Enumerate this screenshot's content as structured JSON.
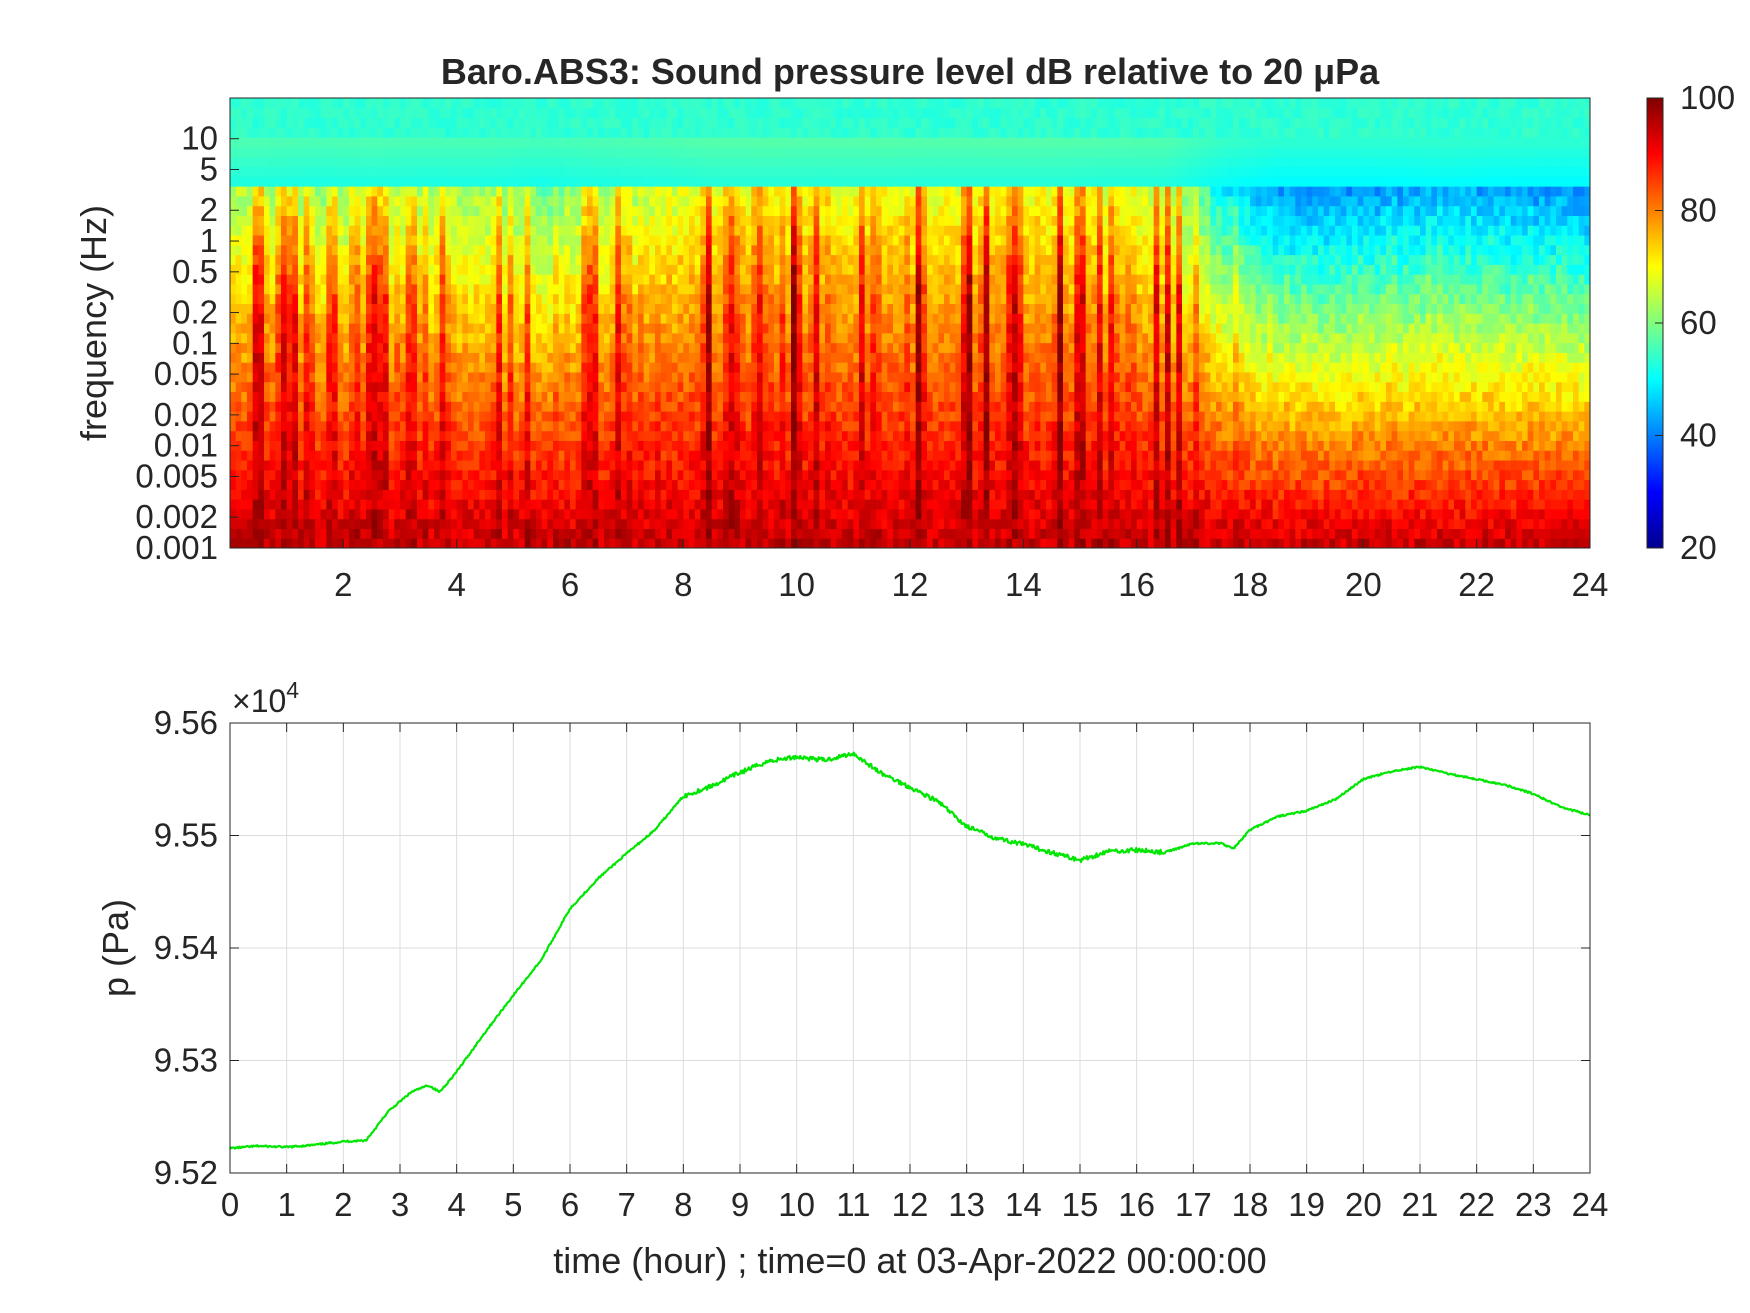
{
  "figure": {
    "window_title": "",
    "colors": {
      "pressure_line": "#00e600",
      "axes": "#262626",
      "grid": "#dcdcdc",
      "background": "#ffffff"
    }
  },
  "chart_data": [
    {
      "type": "heatmap",
      "title": "Baro.ABS3: Sound pressure level dB relative to 20 μPa",
      "xlabel": "",
      "ylabel": "frequency (Hz)",
      "x_ticks": [
        2,
        4,
        6,
        8,
        10,
        12,
        14,
        16,
        18,
        20,
        22,
        24
      ],
      "x_tick_labels": [
        "2",
        "4",
        "6",
        "8",
        "10",
        "12",
        "14",
        "16",
        "18",
        "20",
        "22",
        "24"
      ],
      "xlim": [
        0,
        24
      ],
      "y_scale": "log",
      "y_ticks": [
        0.001,
        0.002,
        0.005,
        0.01,
        0.02,
        0.05,
        0.1,
        0.2,
        0.5,
        1,
        2,
        5,
        10
      ],
      "y_tick_labels": [
        "0.001",
        "0.002",
        "0.005",
        "0.01",
        "0.02",
        "0.05",
        "0.1",
        "0.2",
        "0.5",
        "1",
        "2",
        "5",
        "10"
      ],
      "ylim": [
        0.001,
        25
      ],
      "colormap": "jet",
      "colorbar": {
        "clim": [
          20,
          100
        ],
        "ticks": [
          20,
          40,
          60,
          80,
          100
        ],
        "tick_labels": [
          "20",
          "40",
          "60",
          "80",
          "100"
        ],
        "placement": "right"
      },
      "time_hours": [
        0.5,
        1.5,
        2.5,
        3.5,
        4.5,
        5.5,
        6.5,
        7.5,
        8.5,
        9.5,
        10.5,
        11.5,
        12.5,
        13.5,
        14.5,
        15.5,
        16.5,
        17.5,
        18.5,
        19.5,
        20.5,
        21.5,
        22.5,
        23.5
      ],
      "activity_level_approx": [
        0.75,
        0.7,
        0.75,
        0.7,
        0.72,
        0.6,
        0.72,
        0.78,
        0.9,
        0.92,
        0.9,
        0.92,
        0.88,
        0.9,
        0.9,
        0.85,
        0.82,
        0.35,
        0.12,
        0.12,
        0.14,
        0.2,
        0.14,
        0.12
      ],
      "grid": false
    },
    {
      "type": "line",
      "title": "",
      "xlabel": "time (hour) ; time=0 at 03-Apr-2022 00:00:00",
      "ylabel": "p (Pa)",
      "y_exponent_label": "×10",
      "y_exponent_power": "4",
      "xlim": [
        0,
        24
      ],
      "ylim": [
        95200,
        95600
      ],
      "x_ticks": [
        0,
        1,
        2,
        3,
        4,
        5,
        6,
        7,
        8,
        9,
        10,
        11,
        12,
        13,
        14,
        15,
        16,
        17,
        18,
        19,
        20,
        21,
        22,
        23,
        24
      ],
      "x_tick_labels": [
        "0",
        "1",
        "2",
        "3",
        "4",
        "5",
        "6",
        "7",
        "8",
        "9",
        "10",
        "11",
        "12",
        "13",
        "14",
        "15",
        "16",
        "17",
        "18",
        "19",
        "20",
        "21",
        "22",
        "23",
        "24"
      ],
      "y_ticks": [
        95200,
        95300,
        95400,
        95500,
        95600
      ],
      "y_tick_labels": [
        "9.52",
        "9.53",
        "9.54",
        "9.55",
        "9.56"
      ],
      "grid": true,
      "series": [
        {
          "color": "#00e600",
          "x": [
            0,
            0.5,
            1,
            1.5,
            2,
            2.4,
            2.8,
            3.2,
            3.5,
            3.7,
            4,
            4.5,
            5,
            5.5,
            6,
            6.5,
            7,
            7.5,
            8,
            8.5,
            9,
            9.5,
            10,
            10.5,
            11,
            11.5,
            12,
            12.5,
            13,
            13.5,
            14,
            14.5,
            15,
            15.5,
            16,
            16.5,
            17,
            17.5,
            17.7,
            18,
            18.5,
            19,
            19.5,
            20,
            20.5,
            21,
            21.5,
            22,
            22.5,
            23,
            23.5,
            24
          ],
          "y": [
            95222,
            95224,
            95223,
            95225,
            95228,
            95229,
            95255,
            95272,
            95278,
            95272,
            95290,
            95325,
            95358,
            95390,
            95435,
            95462,
            95484,
            95505,
            95535,
            95544,
            95556,
            95566,
            95570,
            95567,
            95573,
            95555,
            95543,
            95530,
            95508,
            95498,
            95492,
            95485,
            95478,
            95486,
            95487,
            95485,
            95493,
            95493,
            95488,
            95505,
            95517,
            95522,
            95532,
            95550,
            95557,
            95561,
            95555,
            95550,
            95545,
            95537,
            95525,
            95518
          ]
        }
      ]
    }
  ]
}
